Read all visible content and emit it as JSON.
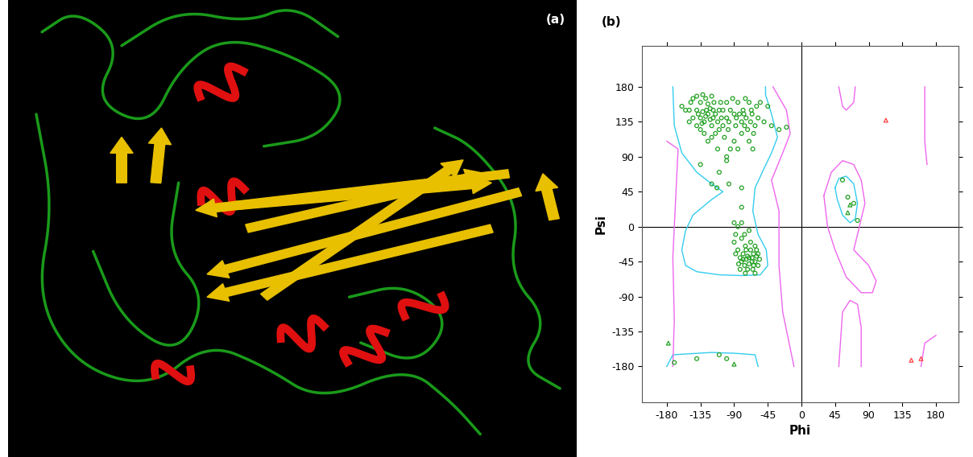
{
  "chart_data": [
    {
      "type": "structure",
      "title": "(a)"
    },
    {
      "type": "scatter",
      "title": "(b)",
      "xlabel": "Phi",
      "ylabel": "Psi",
      "xlim": [
        -213,
        210
      ],
      "ylim": [
        -226,
        233
      ],
      "xticks": [
        -180,
        -135,
        -90,
        -45,
        0,
        45,
        90,
        135,
        180
      ],
      "yticks": [
        -180,
        -135,
        -90,
        -45,
        0,
        45,
        90,
        135,
        180
      ],
      "reference_lines": {
        "x": 0,
        "y": 0
      },
      "series": [
        {
          "type": "line",
          "color": "#33ccee",
          "line_style": "solid",
          "x": [
            -172,
            -170,
            -160,
            -140,
            -120,
            -105,
            -120,
            -145,
            -155,
            -160,
            -155,
            -140,
            -110,
            -80,
            -55,
            -45,
            -47,
            -58,
            -65,
            -62,
            -50,
            -40,
            -32,
            -40,
            -48,
            -48
          ],
          "values": [
            180,
            130,
            95,
            70,
            55,
            45,
            35,
            15,
            -5,
            -30,
            -50,
            -58,
            -62,
            -63,
            -62,
            -50,
            -30,
            -10,
            20,
            50,
            75,
            95,
            115,
            145,
            170,
            180
          ]
        },
        {
          "type": "line",
          "color": "#33ccee",
          "line_style": "solid",
          "x": [
            -180,
            -172,
            -120,
            -90,
            -62,
            -58
          ],
          "values": [
            -180,
            -165,
            -162,
            -163,
            -165,
            -180
          ]
        },
        {
          "type": "line",
          "color": "#33ccee",
          "line_style": "solid",
          "x": [
            45,
            50,
            60,
            70,
            75,
            72,
            65,
            55,
            48,
            45
          ],
          "values": [
            50,
            62,
            65,
            55,
            30,
            10,
            5,
            15,
            35,
            50
          ]
        },
        {
          "type": "line",
          "color": "#ee66ee",
          "line_style": "solid",
          "x": [
            -38,
            -20,
            -15,
            -25,
            -40,
            -30,
            -30,
            -25,
            -10
          ],
          "values": [
            180,
            150,
            120,
            95,
            60,
            20,
            -50,
            -110,
            -180
          ]
        },
        {
          "type": "line",
          "color": "#ee66ee",
          "line_style": "solid",
          "x": [
            -180,
            -165,
            -168,
            -172,
            -170,
            -172
          ],
          "values": [
            110,
            100,
            40,
            -40,
            -120,
            -180
          ]
        },
        {
          "type": "line",
          "color": "#ee66ee",
          "line_style": "solid",
          "x": [
            165,
            165,
            168
          ],
          "values": [
            180,
            110,
            80
          ]
        },
        {
          "type": "line",
          "color": "#ee66ee",
          "line_style": "solid",
          "x": [
            160,
            165,
            180
          ],
          "values": [
            -180,
            -150,
            -140
          ]
        },
        {
          "type": "line",
          "color": "#ee66ee",
          "line_style": "solid",
          "x": [
            50,
            55,
            60,
            70,
            72
          ],
          "values": [
            180,
            155,
            150,
            160,
            180
          ]
        },
        {
          "type": "line",
          "color": "#ee66ee",
          "line_style": "solid",
          "x": [
            30,
            40,
            55,
            70,
            80,
            85,
            80,
            75,
            70,
            90,
            100,
            95,
            80,
            60,
            45,
            35,
            30
          ],
          "values": [
            40,
            70,
            85,
            80,
            60,
            30,
            10,
            -10,
            -30,
            -50,
            -70,
            -85,
            -85,
            -65,
            -30,
            0,
            40
          ]
        },
        {
          "type": "line",
          "color": "#ee66ee",
          "line_style": "solid",
          "x": [
            50,
            55,
            65,
            75,
            80,
            80
          ],
          "values": [
            -180,
            -110,
            -95,
            -100,
            -130,
            -180
          ]
        },
        {
          "type": "scatter",
          "color": "#22a022",
          "marker": "circle",
          "x": [
            -150,
            -148,
            -145,
            -140,
            -135,
            -132,
            -128,
            -125,
            -120,
            -118,
            -140,
            -138,
            -135,
            -132,
            -130,
            -128,
            -125,
            -122,
            -120,
            -118,
            -115,
            -112,
            -110,
            -108,
            -105,
            -103,
            -100,
            -98,
            -95,
            -92,
            -90,
            -88,
            -85,
            -83,
            -80,
            -78,
            -76,
            -74,
            -72,
            -70,
            -68,
            -66,
            -64,
            -62,
            -60,
            -58,
            -75,
            -80,
            -85,
            -95,
            -100,
            -130,
            -125,
            -140,
            -145,
            -115,
            -110,
            -120,
            -135,
            -127,
            -117,
            -107,
            -97,
            -87,
            -77,
            -67,
            -150,
            -155,
            -160,
            -112,
            -50,
            -45,
            -40,
            -30,
            -20,
            -65,
            -55,
            -100,
            -90,
            -70,
            -105,
            -122,
            -133,
            -90,
            -88,
            -85,
            -82,
            -80,
            -78,
            -76,
            -74,
            -72,
            -70,
            -68,
            -66,
            -65,
            -64,
            -62,
            -60,
            -58,
            -56,
            -62,
            -68,
            -75,
            -80,
            -85,
            -90,
            -82,
            -72,
            -66,
            -60,
            -70,
            -78,
            -74,
            -84,
            -64,
            -88,
            -76,
            -70,
            -80,
            -75,
            -62,
            -58,
            -120,
            -113,
            -100,
            -135,
            -97,
            -80,
            -80,
            -110,
            55,
            70,
            75,
            62,
            -170,
            -140,
            -110,
            -100
          ],
          "values": [
            150,
            160,
            165,
            168,
            160,
            170,
            165,
            158,
            168,
            150,
            150,
            145,
            140,
            148,
            135,
            142,
            145,
            138,
            130,
            140,
            145,
            135,
            150,
            160,
            130,
            115,
            140,
            125,
            150,
            165,
            110,
            130,
            160,
            145,
            135,
            150,
            130,
            140,
            125,
            160,
            135,
            145,
            120,
            130,
            155,
            140,
            165,
            120,
            100,
            100,
            90,
            120,
            110,
            130,
            140,
            120,
            125,
            115,
            125,
            150,
            160,
            140,
            135,
            140,
            145,
            150,
            135,
            150,
            155,
            100,
            135,
            155,
            130,
            125,
            128,
            100,
            160,
            160,
            145,
            110,
            150,
            152,
            133,
            -20,
            -10,
            -30,
            -40,
            -45,
            -35,
            -50,
            -42,
            -38,
            -48,
            -30,
            -40,
            -55,
            -35,
            -45,
            -38,
            -50,
            -42,
            -25,
            -20,
            -25,
            -15,
            0,
            5,
            -55,
            -55,
            -45,
            -30,
            -40,
            -42,
            -30,
            -48,
            -50,
            -35,
            -10,
            -5,
            5,
            -60,
            -60,
            -35,
            55,
            50,
            85,
            80,
            55,
            50,
            25,
            70,
            60,
            30,
            8,
            38,
            -175,
            -170,
            -165,
            -170
          ]
        },
        {
          "type": "scatter",
          "color": "#22a022",
          "marker": "triangle",
          "x": [
            65,
            62,
            -178,
            -90
          ],
          "values": [
            28,
            18,
            -150,
            -177
          ]
        },
        {
          "type": "scatter",
          "color": "#ff4040",
          "marker": "triangle",
          "x": [
            113,
            147,
            160
          ],
          "values": [
            137,
            -172,
            -170
          ]
        }
      ]
    }
  ]
}
